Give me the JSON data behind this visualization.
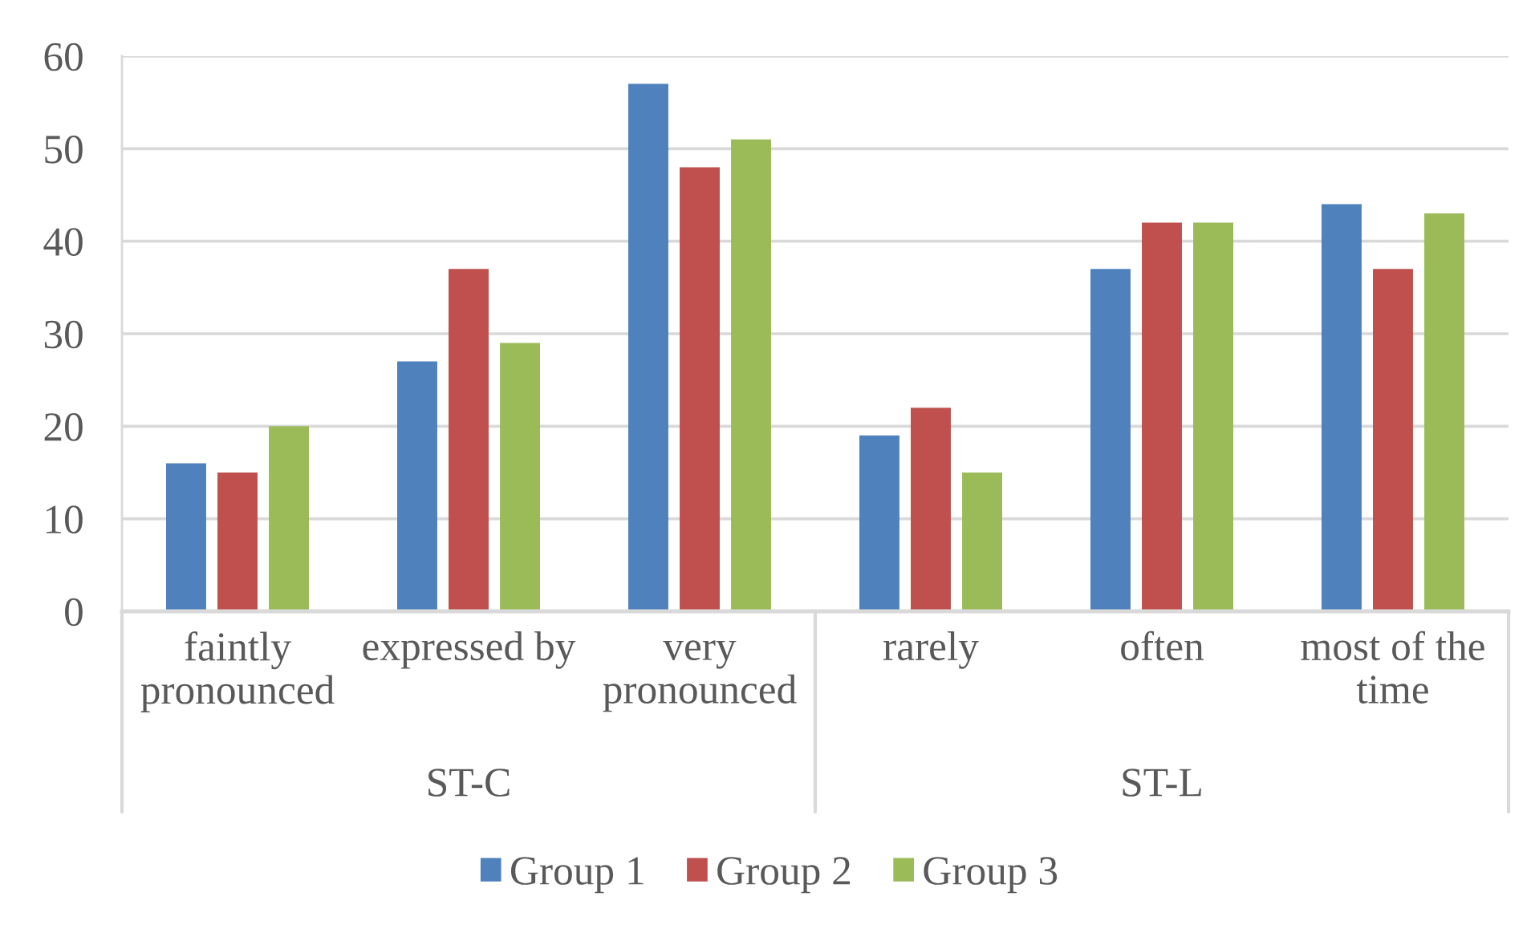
{
  "chart_data": {
    "type": "bar",
    "categories": [
      "faintly\npronounced",
      "expressed by",
      "very\npronounced",
      "rarely",
      "often",
      "most of the\ntime"
    ],
    "series": [
      {
        "name": "Group 1",
        "color": "#4f81bd",
        "values": [
          16,
          27,
          57,
          19,
          37,
          44
        ]
      },
      {
        "name": "Group 2",
        "color": "#c0504d",
        "values": [
          15,
          37,
          48,
          22,
          42,
          37
        ]
      },
      {
        "name": "Group 3",
        "color": "#9bbb59",
        "values": [
          20,
          29,
          51,
          15,
          42,
          43
        ]
      }
    ],
    "ylim": [
      0,
      60
    ],
    "yticks": [
      0,
      10,
      20,
      30,
      40,
      50,
      60
    ],
    "grid": "y",
    "legend": "bottom",
    "annotations": [
      "ST-C",
      "ST-L"
    ]
  }
}
